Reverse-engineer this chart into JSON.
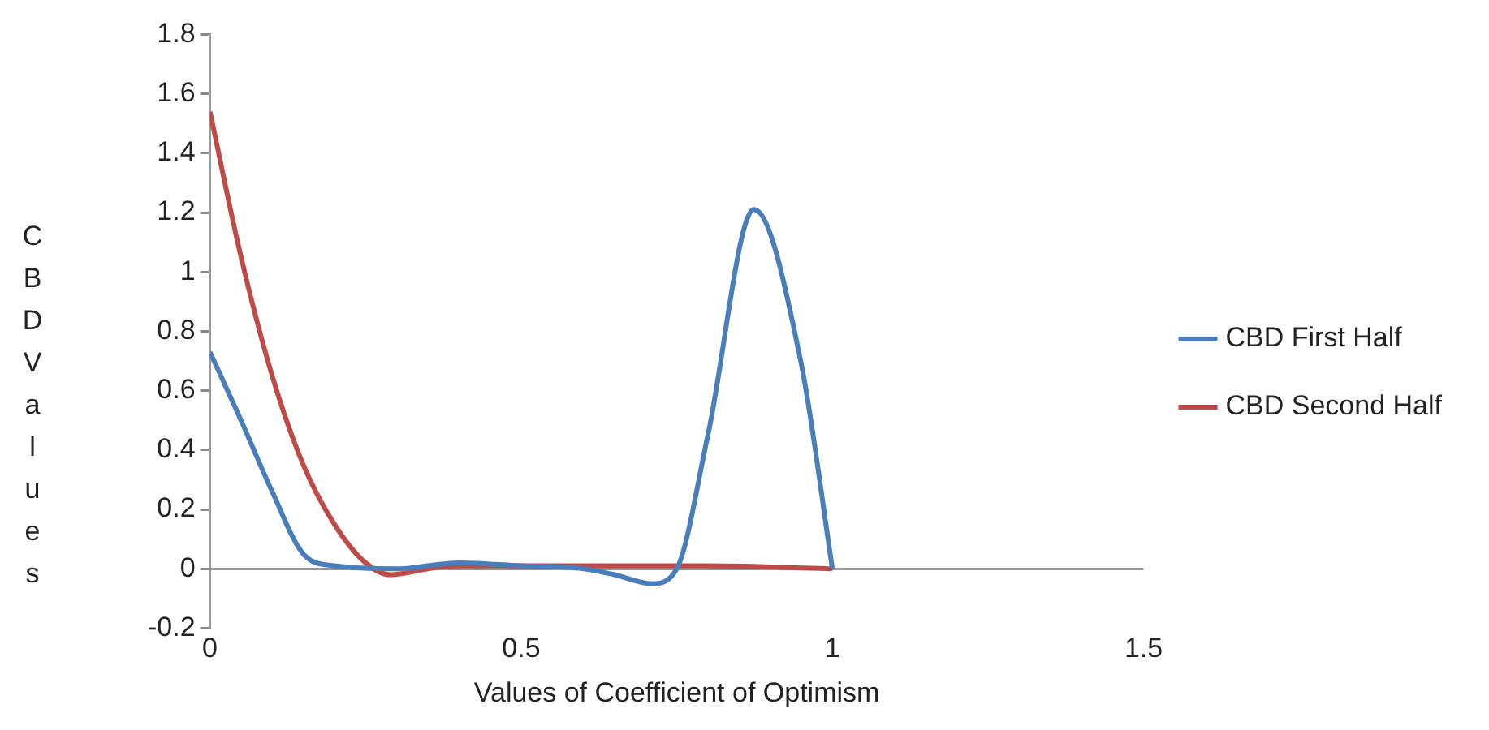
{
  "chart_data": {
    "type": "line",
    "xlabel": "Values of Coefficient of Optimism",
    "ylabel": "CBD Values",
    "xlim": [
      0,
      1.5
    ],
    "xticks": [
      0,
      0.5,
      1,
      1.5
    ],
    "ylim": [
      -0.2,
      1.8
    ],
    "yticks": [
      -0.2,
      0,
      0.2,
      0.4,
      0.6,
      0.8,
      1,
      1.2,
      1.4,
      1.6,
      1.8
    ],
    "grid": false,
    "legend": "right",
    "marker": "none",
    "line_style": "solid",
    "series": [
      {
        "name": "CBD First Half",
        "color": "#4a7ebb",
        "x": [
          0,
          0.05,
          0.1,
          0.15,
          0.2,
          0.3,
          0.4,
          0.5,
          0.6,
          0.65,
          0.71,
          0.75,
          0.8,
          0.874,
          0.95,
          1.0
        ],
        "values": [
          0.73,
          0.5,
          0.26,
          0.05,
          0.01,
          0.0,
          0.02,
          0.01,
          0.0,
          -0.02,
          -0.05,
          0.0,
          0.45,
          1.21,
          0.69,
          0.0
        ]
      },
      {
        "name": "CBD Second Half",
        "color": "#be4b48",
        "x": [
          0,
          0.05,
          0.1,
          0.15,
          0.2,
          0.25,
          0.29,
          0.35,
          0.4,
          0.6,
          0.8,
          1.0
        ],
        "values": [
          1.54,
          1.05,
          0.65,
          0.35,
          0.15,
          0.02,
          -0.02,
          0.0,
          0.01,
          0.01,
          0.01,
          0.0
        ]
      }
    ]
  }
}
